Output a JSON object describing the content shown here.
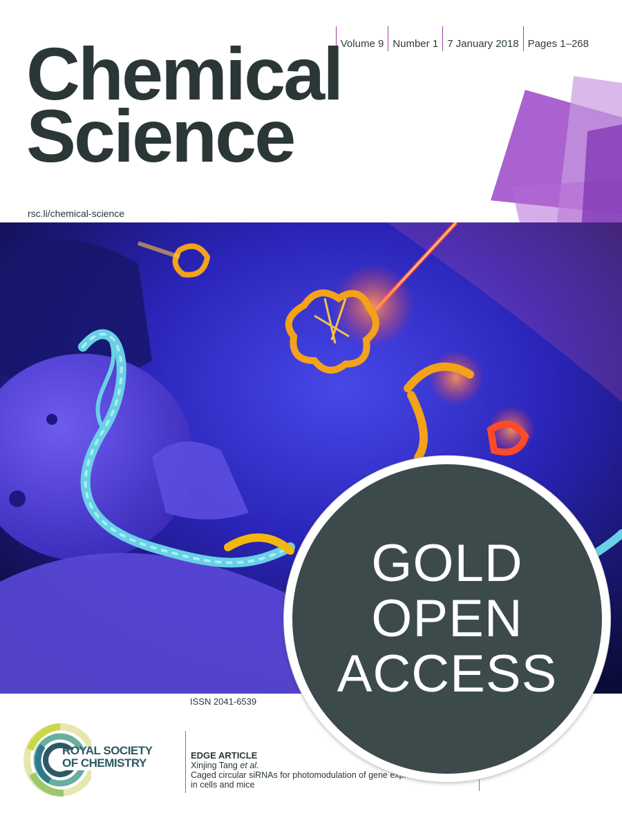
{
  "meta": {
    "volume": "Volume 9",
    "number": "Number 1",
    "date": "7 January 2018",
    "pages": "Pages 1–268"
  },
  "journal": {
    "title_line1": "Chemical",
    "title_line2": "Science",
    "url": "rsc.li/chemical-science"
  },
  "issn": "ISSN 2041-6539",
  "publisher": {
    "line1": "ROYAL SOCIETY",
    "line2": "OF CHEMISTRY"
  },
  "article": {
    "type": "EDGE ARTICLE",
    "authors": "Xinjing Tang",
    "etal": "et al.",
    "title_line1": "Caged circular siRNAs for photomodulation of gene expre",
    "title_line2": "in cells and mice"
  },
  "badge": {
    "line1": "GOLD",
    "line2": "OPEN",
    "line3": "ACCESS",
    "color": "#3c4a4b"
  },
  "colors": {
    "accent": "#a03ea8",
    "title": "#2b3637",
    "hero_bg": "#1a1fa0"
  }
}
